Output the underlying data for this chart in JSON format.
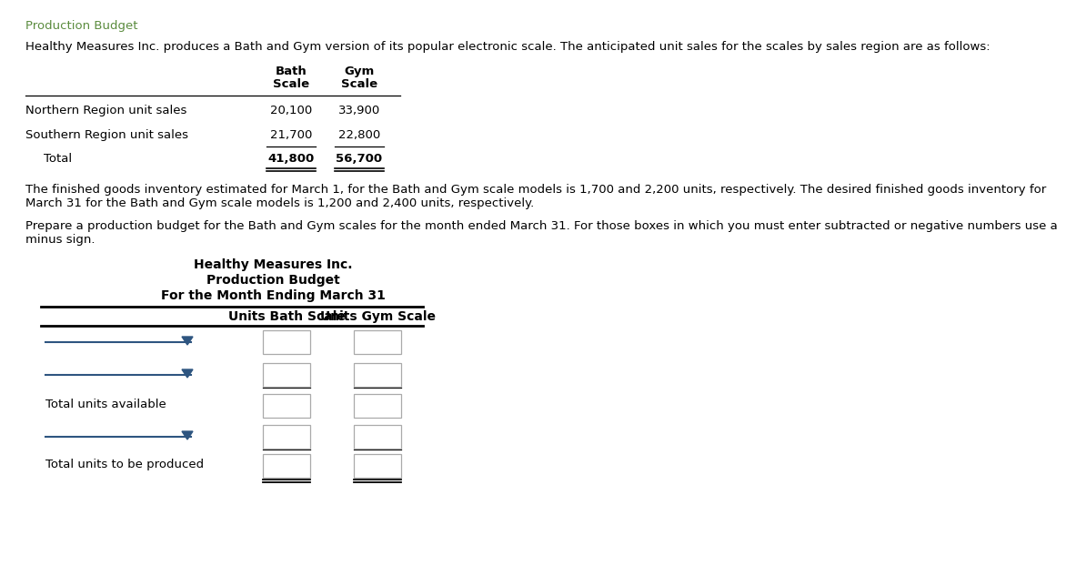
{
  "title_green": "Production Budget",
  "green_color": "#5B8C3E",
  "intro_text": "Healthy Measures Inc. produces a Bath and Gym version of its popular electronic scale. The anticipated unit sales for the scales by sales region are as follows:",
  "col_header1": "Bath",
  "col_header2": "Gym",
  "col_header3": "Scale",
  "col_header4": "Scale",
  "row1_label": "Northern Region unit sales",
  "row1_bath": "20,100",
  "row1_gym": "33,900",
  "row2_label": "Southern Region unit sales",
  "row2_bath": "21,700",
  "row2_gym": "22,800",
  "row3_label": "Total",
  "row3_bath": "41,800",
  "row3_gym": "56,700",
  "para1": "The finished goods inventory estimated for March 1, for the Bath and Gym scale models is 1,700 and 2,200 units, respectively. The desired finished goods inventory for",
  "para1b": "March 31 for the Bath and Gym scale models is 1,200 and 2,400 units, respectively.",
  "para2": "Prepare a production budget for the Bath and Gym scales for the month ended March 31. For those boxes in which you must enter subtracted or negative numbers use a",
  "para2b": "minus sign.",
  "company_name": "Healthy Measures Inc.",
  "budget_title": "Production Budget",
  "period": "For the Month Ending March 31",
  "col_header_bath": "Units Bath Scale",
  "col_header_gym": "Units Gym Scale",
  "label_total_avail": "Total units available",
  "label_total_produced": "Total units to be produced",
  "bg_color": "#ffffff",
  "text_color": "#000000",
  "blue_color": "#2E5580",
  "box_border_color": "#aaaaaa"
}
